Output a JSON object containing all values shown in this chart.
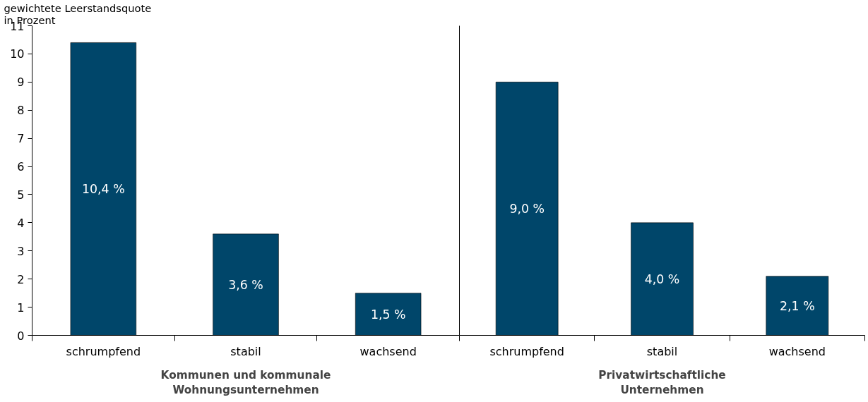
{
  "chart_data": [
    {
      "type": "bar",
      "ylabel": "gewichtete Leerstandsquote\nin Prozent",
      "xlabel": "Kommunen und kommunale\nWohnungsunternehmen",
      "categories": [
        "schrumpfend",
        "stabil",
        "wachsend"
      ],
      "values": [
        10.4,
        3.6,
        1.5
      ],
      "value_labels": [
        "10,4 %",
        "3,6 %",
        "1,5 %"
      ],
      "color": "#00466a",
      "ylim": [
        0,
        11
      ],
      "yticks": [
        0,
        1,
        2,
        3,
        4,
        5,
        6,
        7,
        8,
        9,
        10,
        11
      ]
    },
    {
      "type": "bar",
      "xlabel": "Privatwirtschaftliche\nUnternehmen",
      "categories": [
        "schrumpfend",
        "stabil",
        "wachsend"
      ],
      "values": [
        9.0,
        4.0,
        2.1
      ],
      "value_labels": [
        "9,0 %",
        "4,0 %",
        "2,1 %"
      ],
      "color": "#00466a",
      "ylim": [
        0,
        11
      ],
      "yticks": [
        0,
        1,
        2,
        3,
        4,
        5,
        6,
        7,
        8,
        9,
        10,
        11
      ],
      "tick_labels": "x"
    }
  ]
}
